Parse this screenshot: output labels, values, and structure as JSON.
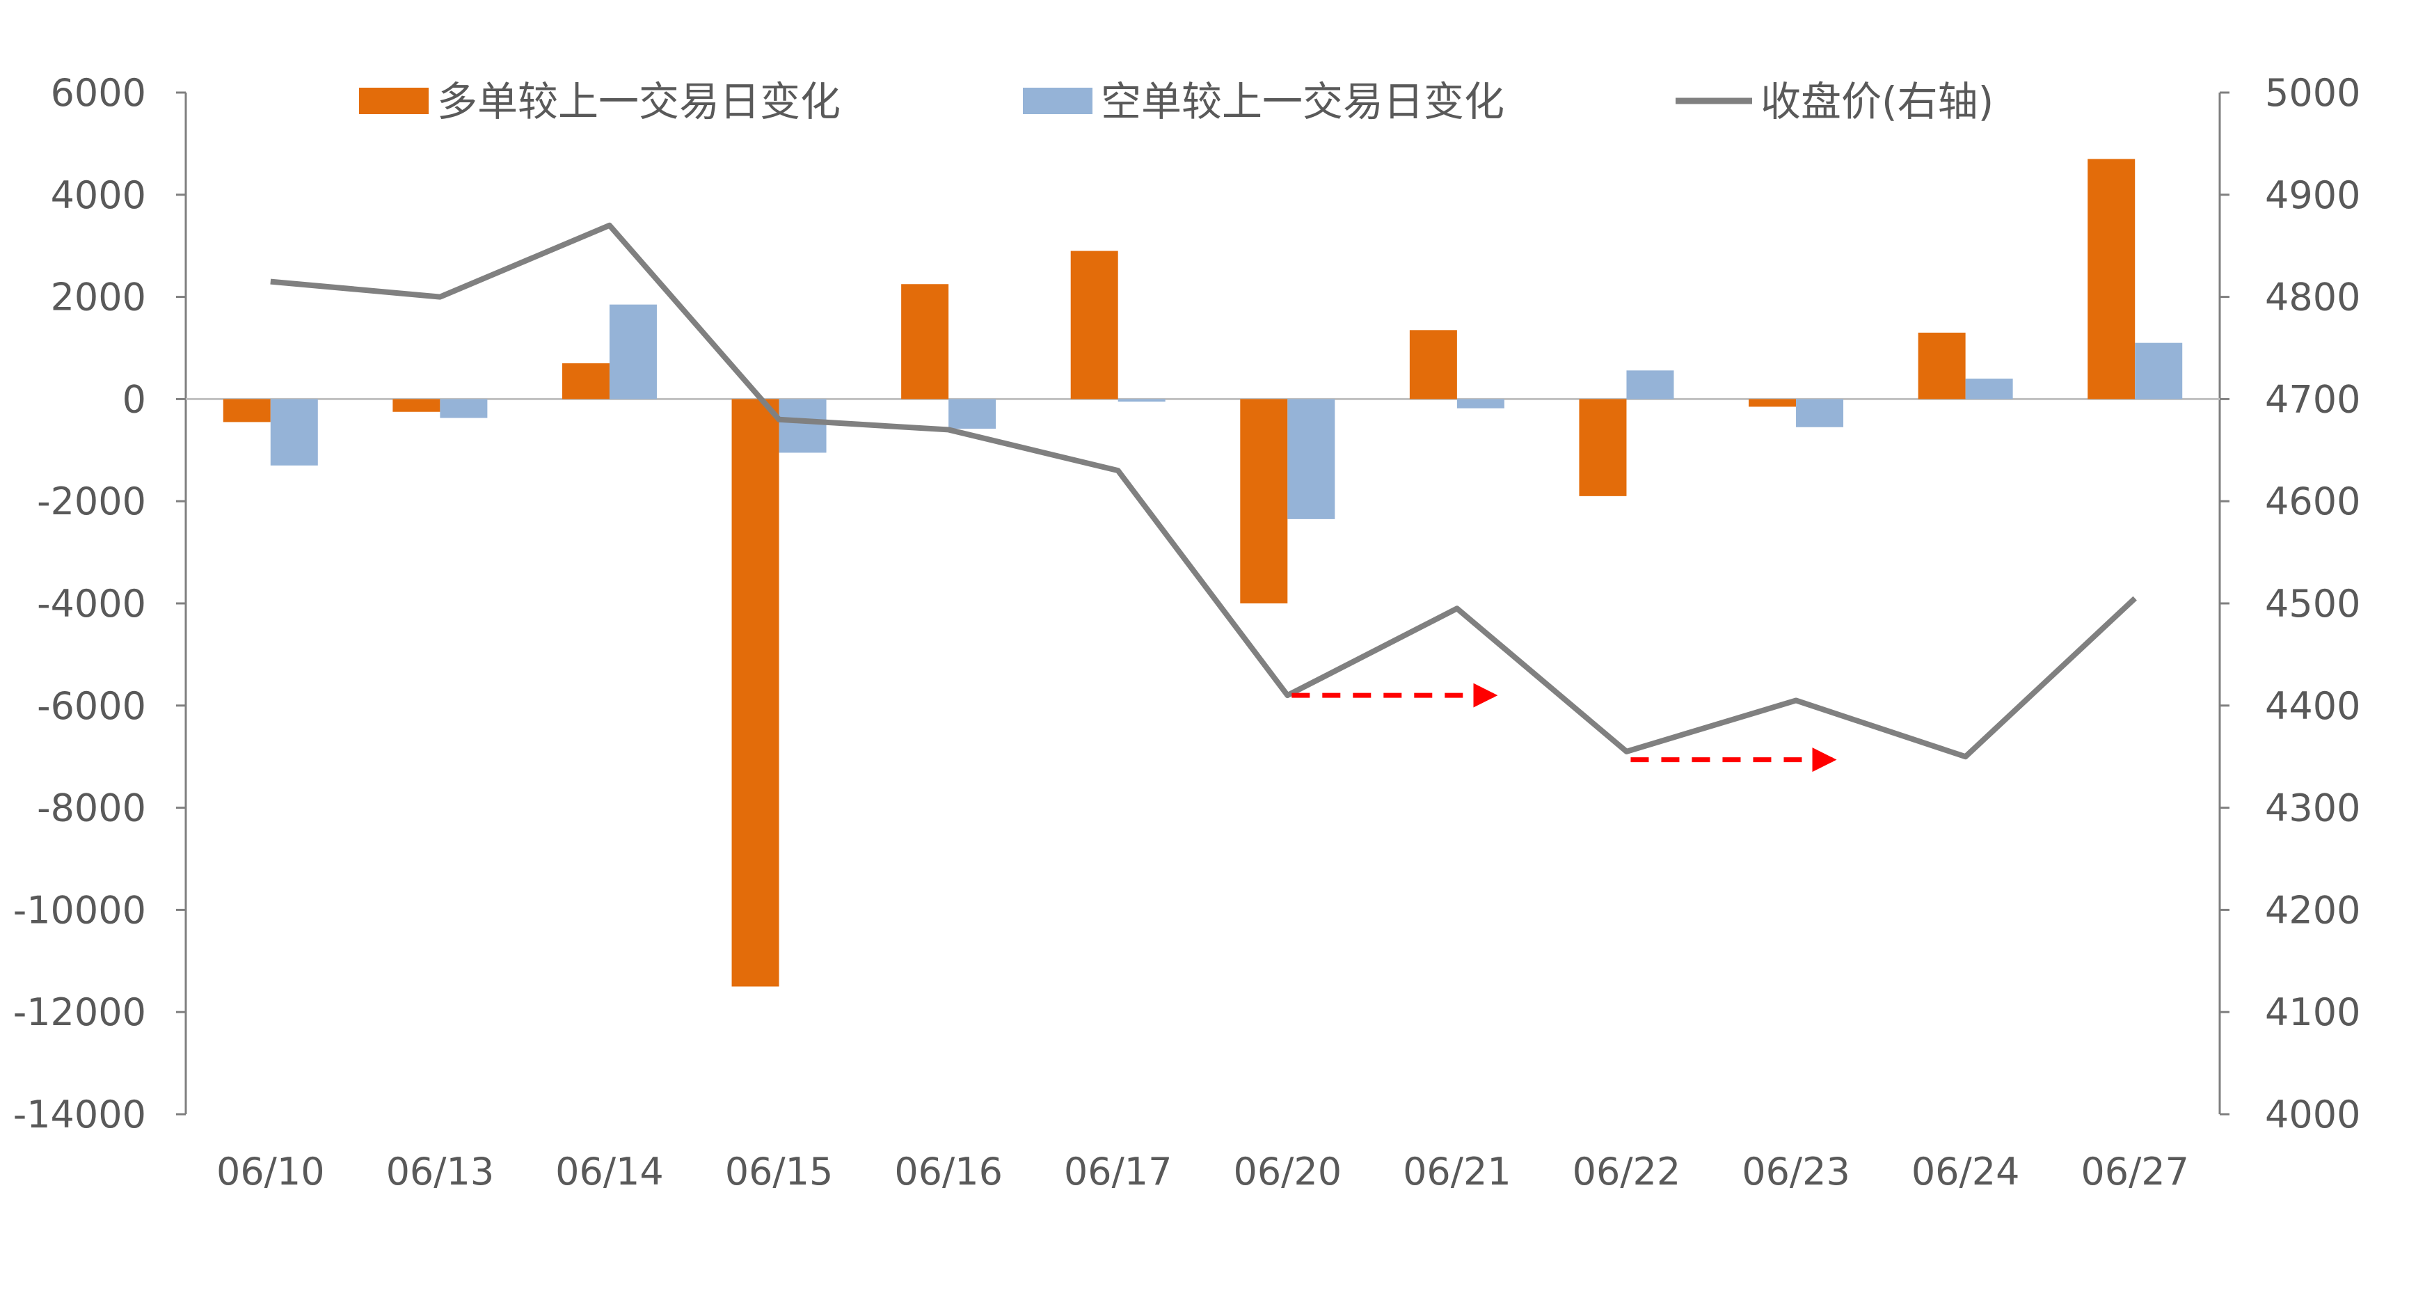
{
  "chart_data": {
    "type": "bar",
    "categories": [
      "06/10",
      "06/13",
      "06/14",
      "06/15",
      "06/16",
      "06/17",
      "06/20",
      "06/21",
      "06/22",
      "06/23",
      "06/24",
      "06/27"
    ],
    "series": [
      {
        "name": "多单较上一交易日变化",
        "kind": "bar",
        "axis": "left",
        "color": "#E36C0A",
        "values": [
          -450,
          -250,
          700,
          -11500,
          2250,
          2900,
          -4000,
          1350,
          -1900,
          -150,
          1300,
          4700
        ]
      },
      {
        "name": "空单较上一交易日变化",
        "kind": "bar",
        "axis": "left",
        "color": "#95B3D7",
        "values": [
          -1300,
          -370,
          1850,
          -1050,
          -580,
          -50,
          -2350,
          -180,
          560,
          -550,
          400,
          1100
        ]
      },
      {
        "name": "收盘价(右轴)",
        "kind": "line",
        "axis": "right",
        "color": "#808080",
        "values": [
          4815,
          4800,
          4870,
          4680,
          4670,
          4630,
          4410,
          4495,
          4355,
          4405,
          4350,
          4505
        ]
      }
    ],
    "y_left": {
      "min": -14000,
      "max": 6000,
      "ticks": [
        "6000",
        "4000",
        "2000",
        "0",
        "-2000",
        "-4000",
        "-6000",
        "-8000",
        "-10000",
        "-12000",
        "-14000"
      ]
    },
    "y_right": {
      "min": 4000,
      "max": 5000,
      "ticks": [
        "5000",
        "4900",
        "4800",
        "4700",
        "4600",
        "4500",
        "4400",
        "4300",
        "4200",
        "4100",
        "4000"
      ]
    },
    "annotations": [
      {
        "type": "dashed-arrow",
        "color": "#FF0000",
        "from_category": "06/20",
        "to_category": "06/21",
        "y_right": 4410
      },
      {
        "type": "dashed-arrow",
        "color": "#FF0000",
        "from_category": "06/22",
        "to_category": "06/23",
        "y_right": 4347
      }
    ],
    "legend_position": "top",
    "grid": false,
    "title": "",
    "xlabel": "",
    "ylabel": ""
  }
}
